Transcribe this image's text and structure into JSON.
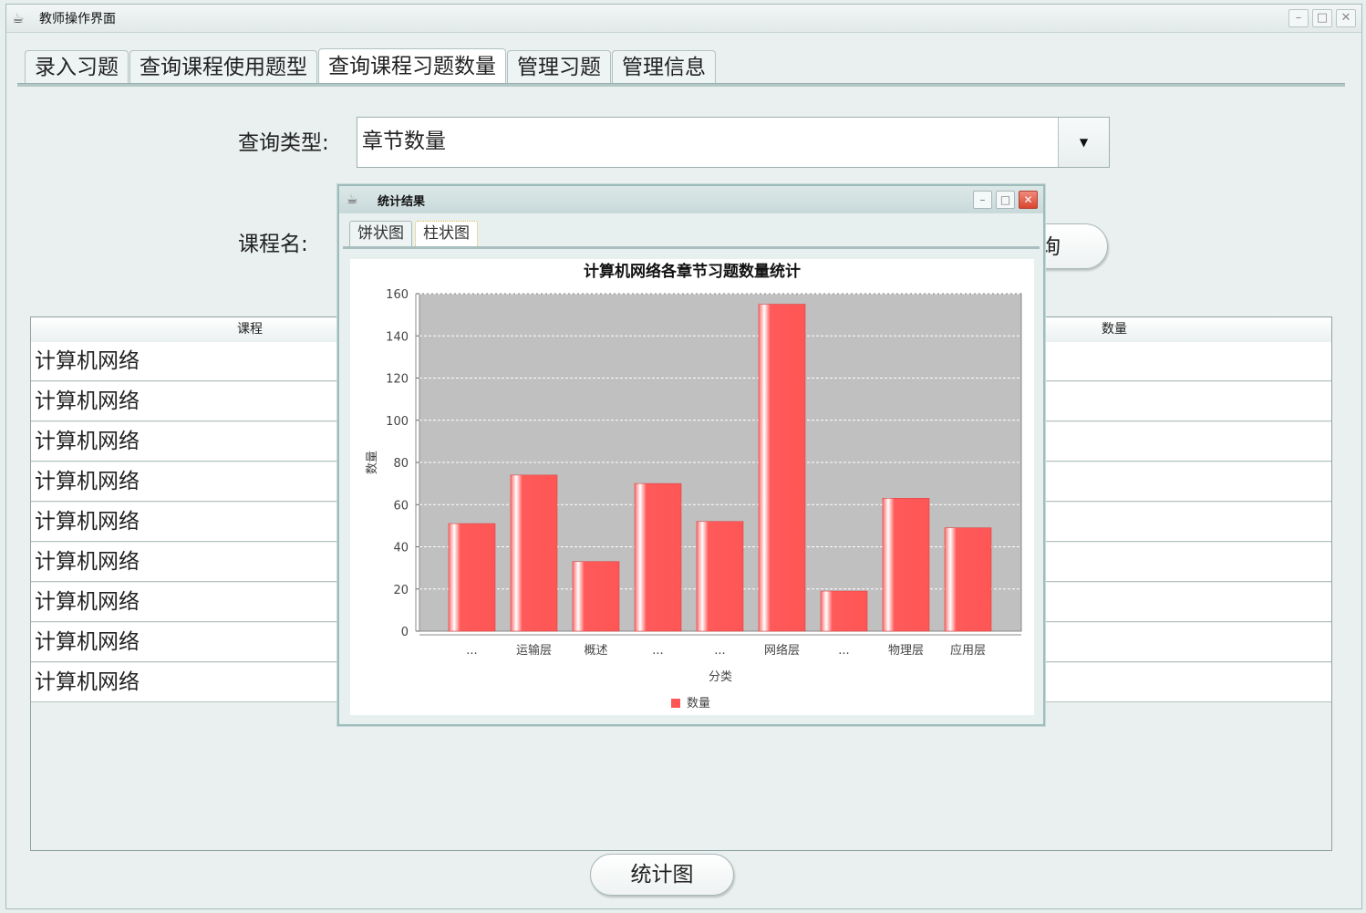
{
  "window": {
    "title": "教师操作界面",
    "controls": {
      "minimize": "–",
      "maximize": "□",
      "close": "✕"
    }
  },
  "tabs": [
    {
      "label": "录入习题",
      "active": false
    },
    {
      "label": "查询课程使用题型",
      "active": false
    },
    {
      "label": "查询课程习题数量",
      "active": true
    },
    {
      "label": "管理习题",
      "active": false
    },
    {
      "label": "管理信息",
      "active": false
    }
  ],
  "form": {
    "query_type_label": "查询类型:",
    "query_type_value": "章节数量",
    "course_name_label": "课程名:",
    "query_button_partial": "询"
  },
  "table": {
    "headers": {
      "course": "课程",
      "count": "数量"
    },
    "rows": [
      {
        "course": "计算机网络"
      },
      {
        "course": "计算机网络"
      },
      {
        "course": "计算机网络"
      },
      {
        "course": "计算机网络"
      },
      {
        "course": "计算机网络"
      },
      {
        "course": "计算机网络"
      },
      {
        "course": "计算机网络"
      },
      {
        "course": "计算机网络"
      },
      {
        "course": "计算机网络"
      }
    ]
  },
  "stat_button": "统计图",
  "dialog": {
    "title": "统计结果",
    "tabs": [
      {
        "label": "饼状图",
        "active": false
      },
      {
        "label": "柱状图",
        "active": true
      }
    ]
  },
  "colors": {
    "bar": "#ff5555",
    "plot_bg": "#c0c0c0",
    "accent": "#a9bfbf"
  },
  "chart_data": {
    "type": "bar",
    "title": "计算机网络各章节习题数量统计",
    "xlabel": "分类",
    "ylabel": "数量",
    "categories": [
      "...",
      "运输层",
      "概述",
      "...",
      "...",
      "网络层",
      "...",
      "物理层",
      "应用层"
    ],
    "series": [
      {
        "name": "数量",
        "values": [
          51,
          74,
          33,
          70,
          52,
          155,
          19,
          63,
          49
        ]
      }
    ],
    "ylim": [
      0,
      160
    ],
    "yticks": [
      0,
      20,
      40,
      60,
      80,
      100,
      120,
      140,
      160
    ],
    "grid": true,
    "legend": "bottom"
  }
}
